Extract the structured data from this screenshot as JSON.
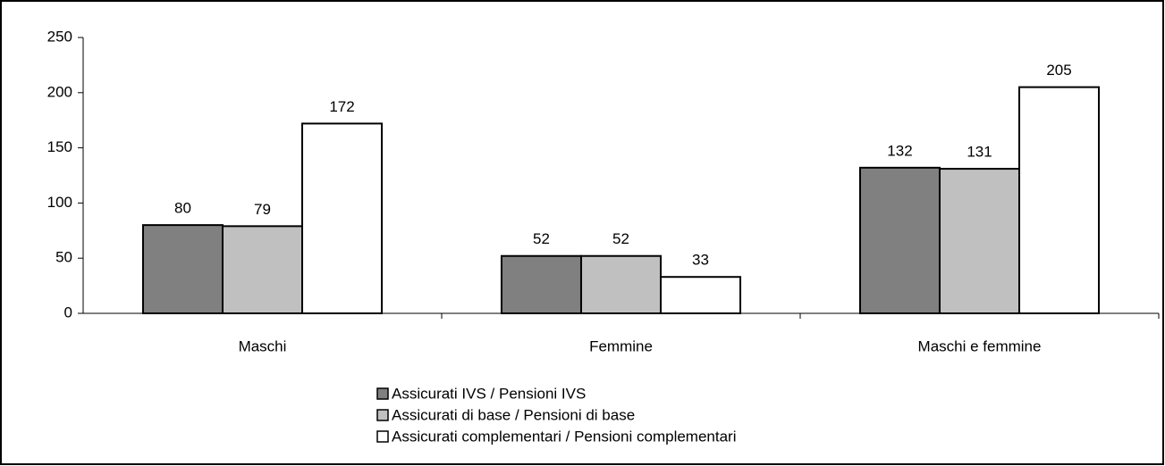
{
  "chart_data": {
    "type": "bar",
    "categories": [
      "Maschi",
      "Femmine",
      "Maschi e femmine"
    ],
    "series": [
      {
        "name": "Assicurati IVS / Pensioni IVS",
        "color": "#808080",
        "values": [
          80,
          52,
          132
        ]
      },
      {
        "name": "Assicurati di base / Pensioni di base",
        "color": "#c0c0c0",
        "values": [
          79,
          52,
          131
        ]
      },
      {
        "name": "Assicurati complementari / Pensioni complementari",
        "color": "#ffffff",
        "values": [
          172,
          33,
          205
        ]
      }
    ],
    "ylim": [
      0,
      250
    ],
    "yticks": [
      0,
      50,
      100,
      150,
      200,
      250
    ],
    "grid": false,
    "legend": "bottom"
  }
}
